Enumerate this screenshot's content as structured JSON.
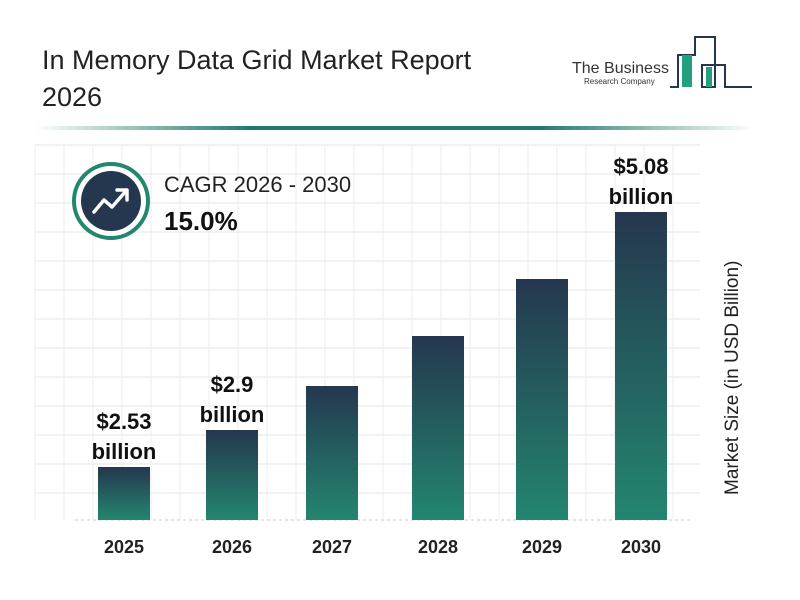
{
  "title": "In Memory Data Grid Market Report 2026",
  "logo": {
    "line1": "The Business",
    "line2": "Research Company"
  },
  "cagr": {
    "label": "CAGR 2026 - 2030",
    "value": "15.0%",
    "icon": "trending-up-icon"
  },
  "chart_data": {
    "type": "bar",
    "categories": [
      "2025",
      "2026",
      "2027",
      "2028",
      "2029",
      "2030"
    ],
    "values": [
      2.53,
      2.9,
      3.34,
      3.84,
      4.41,
      5.08
    ],
    "data_labels": [
      "$2.53 billion",
      "$2.9 billion",
      "",
      "",
      "",
      "$5.08 billion"
    ],
    "ylabel": "Market Size (in USD Billion)",
    "ylim": [
      2,
      5.3
    ],
    "grid": true,
    "colors": {
      "bar_top": "#25374f",
      "bar_bottom": "#23866f",
      "accent": "#1f7a68"
    }
  }
}
